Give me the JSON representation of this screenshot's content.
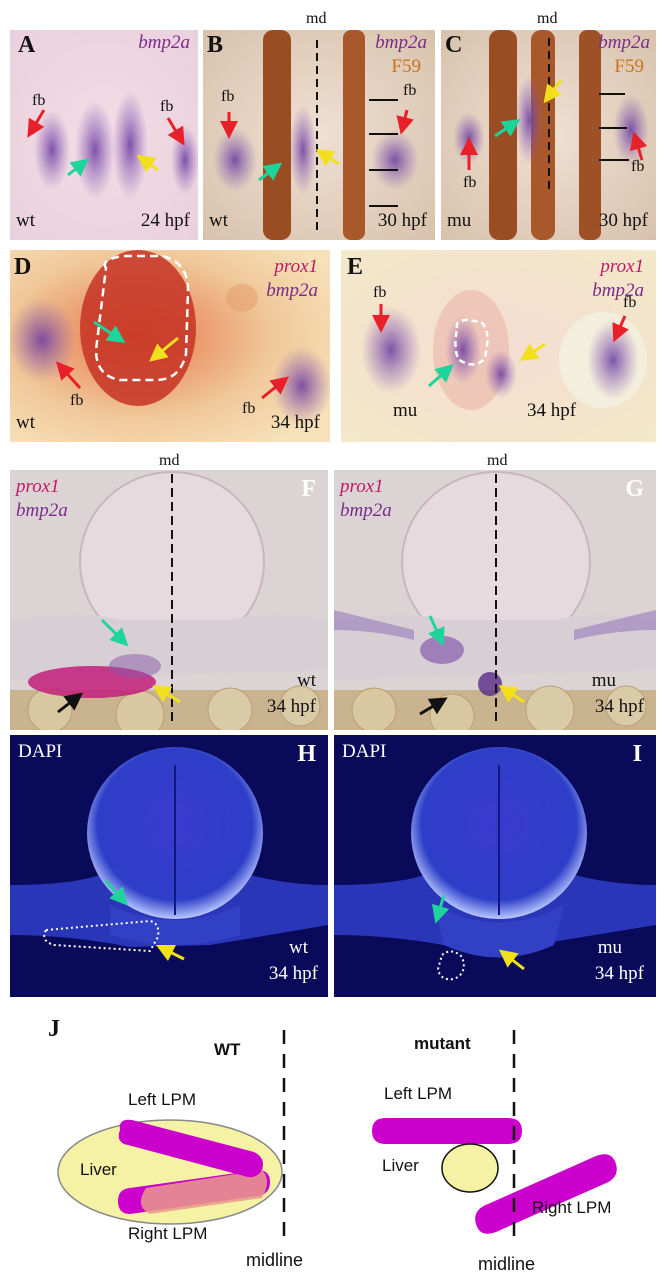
{
  "panels": {
    "A": {
      "label": "A",
      "gene": "bmp2a",
      "fb_left": "fb",
      "fb_right": "fb",
      "genotype": "wt",
      "stage": "24 hpf"
    },
    "B": {
      "label": "B",
      "gene": "bmp2a",
      "marker": "F59",
      "md": "md",
      "fb": "fb",
      "genotype": "wt",
      "stage": "30 hpf"
    },
    "C": {
      "label": "C",
      "gene": "bmp2a",
      "marker": "F59",
      "md": "md",
      "fb_left": "fb",
      "fb_right": "fb",
      "genotype": "mu",
      "stage": "30 hpf"
    },
    "D": {
      "label": "D",
      "gene1": "prox1",
      "gene2": "bmp2a",
      "fb_left": "fb",
      "fb_right": "fb",
      "genotype": "wt",
      "stage": "34 hpf"
    },
    "E": {
      "label": "E",
      "gene1": "prox1",
      "gene2": "bmp2a",
      "fb_left": "fb",
      "fb_right": "fb",
      "genotype": "mu",
      "stage": "34 hpf"
    },
    "F": {
      "label": "F",
      "gene1": "prox1",
      "gene2": "bmp2a",
      "md": "md",
      "genotype": "wt",
      "stage": "34 hpf"
    },
    "G": {
      "label": "G",
      "gene1": "prox1",
      "gene2": "bmp2a",
      "md": "md",
      "genotype": "mu",
      "stage": "34 hpf"
    },
    "H": {
      "label": "H",
      "stain": "DAPI",
      "genotype": "wt",
      "stage": "34 hpf"
    },
    "I": {
      "label": "I",
      "stain": "DAPI",
      "genotype": "mu",
      "stage": "34 hpf"
    }
  },
  "diagram": {
    "label": "J",
    "wt": {
      "title": "WT",
      "left_lpm": "Left LPM",
      "liver": "Liver",
      "right_lpm": "Right LPM",
      "midline": "midline"
    },
    "mutant": {
      "title": "mutant",
      "left_lpm": "Left LPM",
      "liver": "Liver",
      "right_lpm": "Right LPM",
      "midline": "midline"
    }
  },
  "colors": {
    "lpm": "#cc00cc",
    "liver": "#f5f2a6",
    "liver_overlap": "#e89a88",
    "arrow_red": "#e8202a",
    "arrow_green": "#1fd49a",
    "arrow_yellow": "#f2e01c",
    "arrow_black": "#111111",
    "dapi_bg": "#0a0a5a",
    "dapi_tissue": "#3a4ad8"
  },
  "arrows": [
    "red-arrow",
    "green-arrow",
    "yellow-arrow",
    "black-arrow"
  ]
}
